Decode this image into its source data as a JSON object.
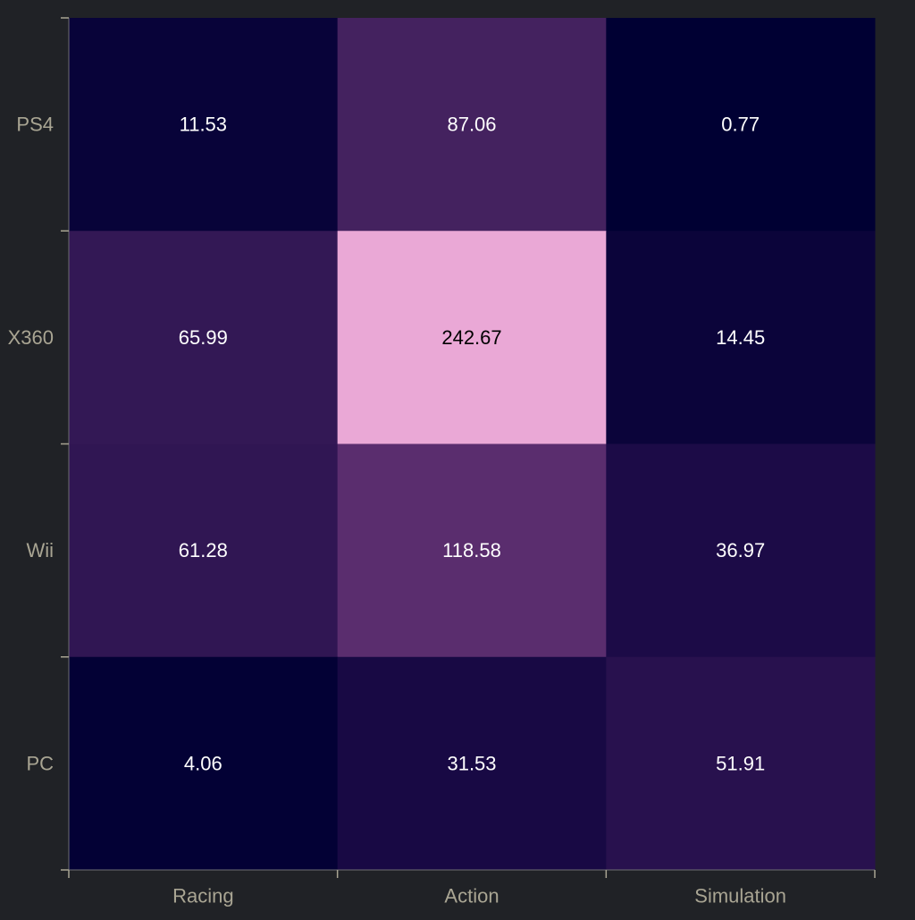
{
  "chart_data": {
    "type": "heatmap",
    "title": "",
    "xlabel": "",
    "ylabel": "",
    "x_categories": [
      "Racing",
      "Action",
      "Simulation"
    ],
    "y_categories": [
      "PS4",
      "X360",
      "Wii",
      "PC"
    ],
    "values": [
      [
        11.53,
        87.06,
        0.77
      ],
      [
        65.99,
        242.67,
        14.45
      ],
      [
        61.28,
        118.58,
        36.97
      ],
      [
        4.06,
        31.53,
        51.91
      ]
    ],
    "value_range": [
      0.77,
      242.67
    ],
    "colormap": [
      "#000033",
      "#1f0c49",
      "#40205c",
      "#5c2e70",
      "#7e3f8a",
      "#ab6cb3",
      "#eaa8d6"
    ],
    "grid": false,
    "legend": "none",
    "colors": {
      "background": "#202226",
      "tick_label": "#a9a593",
      "axis": "#6e6e72",
      "cell_text_light": "#ffffff",
      "cell_text_dark": "#000000"
    }
  }
}
